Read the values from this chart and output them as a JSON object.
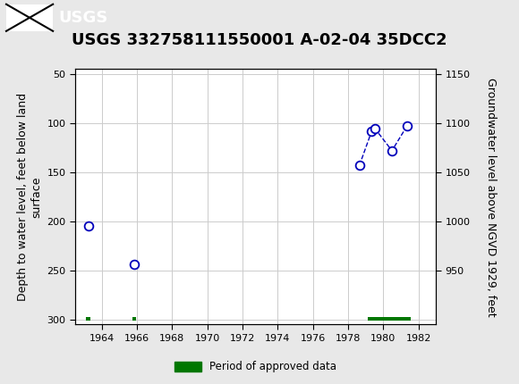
{
  "title": "USGS 332758111550001 A-02-04 35DCC2",
  "ylabel_left": "Depth to water level, feet below land\nsurface",
  "ylabel_right": "Groundwater level above NGVD 1929, feet",
  "header_color": "#005c40",
  "bg_color": "#e8e8e8",
  "plot_bg": "#ffffff",
  "xlim": [
    1962.5,
    1983.0
  ],
  "ylim_left": [
    305,
    45
  ],
  "ylim_right": [
    895,
    1155
  ],
  "yticks_left": [
    50,
    100,
    150,
    200,
    250,
    300
  ],
  "yticks_right": [
    950,
    1000,
    1050,
    1100,
    1150
  ],
  "xticks": [
    1964,
    1966,
    1968,
    1970,
    1972,
    1974,
    1976,
    1978,
    1980,
    1982
  ],
  "data_points": [
    {
      "year": 1963.25,
      "depth": 205
    },
    {
      "year": 1965.85,
      "depth": 244
    },
    {
      "year": 1978.65,
      "depth": 143
    },
    {
      "year": 1979.35,
      "depth": 108
    },
    {
      "year": 1979.55,
      "depth": 106
    },
    {
      "year": 1980.5,
      "depth": 128
    },
    {
      "year": 1981.35,
      "depth": 103
    }
  ],
  "approved_bars": [
    {
      "x_start": 1963.1,
      "x_end": 1963.38
    },
    {
      "x_start": 1965.75,
      "x_end": 1965.95
    },
    {
      "x_start": 1979.1,
      "x_end": 1981.55
    }
  ],
  "point_color": "#0000bb",
  "point_size": 7,
  "line_color": "#0000bb",
  "bar_color": "#007700",
  "grid_color": "#cccccc",
  "title_fontsize": 13,
  "axis_fontsize": 9,
  "tick_fontsize": 8,
  "legend_label": "Period of approved data",
  "legend_color": "#007700"
}
